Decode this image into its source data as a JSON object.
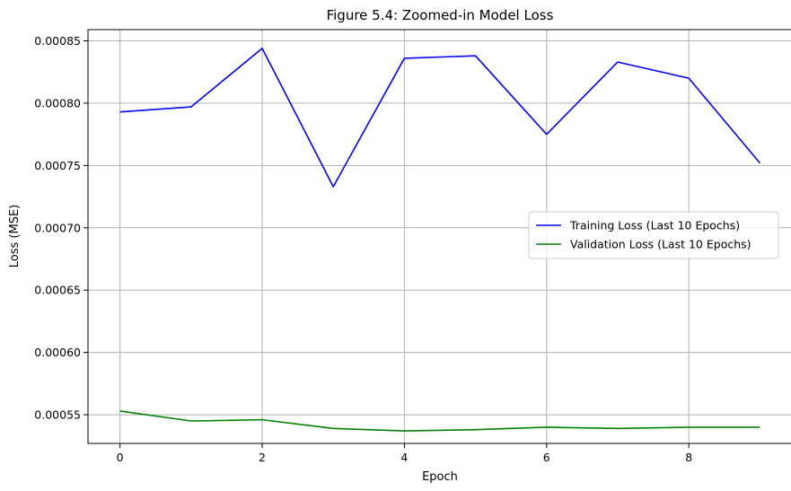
{
  "chart_data": {
    "type": "line",
    "title": "Figure 5.4: Zoomed-in Model Loss",
    "xlabel": "Epoch",
    "ylabel": "Loss (MSE)",
    "x": [
      0,
      1,
      2,
      3,
      4,
      5,
      6,
      7,
      8,
      9
    ],
    "xlim": [
      -0.45,
      9.45
    ],
    "ylim": [
      0.000527,
      0.000859
    ],
    "xticks": [
      0,
      2,
      4,
      6,
      8
    ],
    "yticks": [
      0.00055,
      0.0006,
      0.00065,
      0.0007,
      0.00075,
      0.0008,
      0.00085
    ],
    "ytick_labels": [
      "0.00055",
      "0.00060",
      "0.00065",
      "0.00070",
      "0.00075",
      "0.00080",
      "0.00085"
    ],
    "grid": true,
    "legend_position": "center-right",
    "series": [
      {
        "name": "Training Loss (Last 10 Epochs)",
        "color": "#0000ff",
        "values": [
          0.000793,
          0.000797,
          0.000844,
          0.000733,
          0.000836,
          0.000838,
          0.000775,
          0.000833,
          0.00082,
          0.000752
        ]
      },
      {
        "name": "Validation Loss (Last 10 Epochs)",
        "color": "#008000",
        "values": [
          0.000553,
          0.000545,
          0.000546,
          0.000539,
          0.000537,
          0.000538,
          0.00054,
          0.000539,
          0.00054,
          0.00054
        ]
      }
    ]
  }
}
